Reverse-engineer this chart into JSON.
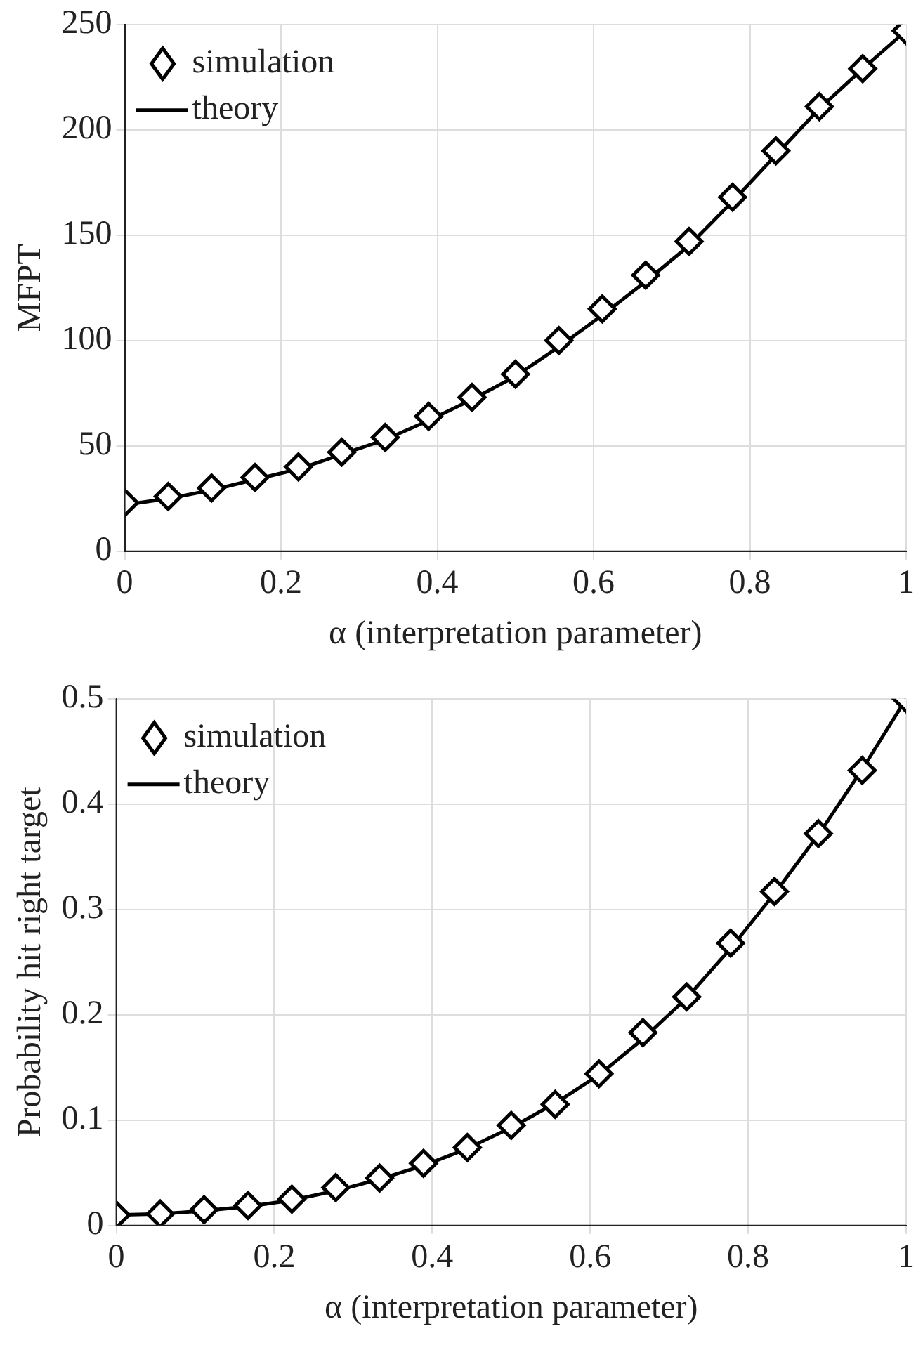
{
  "chart_data": [
    {
      "type": "line",
      "xlabel": "α (interpretation parameter)",
      "ylabel": "MFPT",
      "x": [
        0,
        0.0556,
        0.1111,
        0.1667,
        0.2222,
        0.2778,
        0.3333,
        0.3889,
        0.4444,
        0.5,
        0.5556,
        0.6111,
        0.6667,
        0.7222,
        0.7778,
        0.8333,
        0.8889,
        0.9444,
        1
      ],
      "series": [
        {
          "name": "simulation",
          "type": "scatter",
          "marker": "diamond",
          "color": "#000000",
          "values": [
            23,
            26,
            30,
            35,
            40,
            47,
            54,
            64,
            73,
            84,
            100,
            115,
            131,
            147,
            168,
            190,
            211,
            229,
            247
          ]
        },
        {
          "name": "theory",
          "type": "line",
          "marker": "none",
          "line_style": "solid",
          "color": "#000000",
          "values": [
            22,
            25,
            29,
            34,
            39,
            46,
            53,
            62,
            72,
            83,
            97,
            112,
            128,
            145,
            166,
            188,
            210,
            229,
            247
          ]
        }
      ],
      "xlim": [
        0,
        1
      ],
      "xticks": [
        0,
        0.2,
        0.4,
        0.6,
        0.8,
        1
      ],
      "ylim": [
        0,
        250
      ],
      "yticks": [
        0,
        50,
        100,
        150,
        200,
        250
      ],
      "grid": true,
      "legend": "top left"
    },
    {
      "type": "line",
      "xlabel": "α (interpretation parameter)",
      "ylabel": "Probability hit right target",
      "x": [
        0,
        0.0556,
        0.1111,
        0.1667,
        0.2222,
        0.2778,
        0.3333,
        0.3889,
        0.4444,
        0.5,
        0.5556,
        0.6111,
        0.6667,
        0.7222,
        0.7778,
        0.8333,
        0.8889,
        0.9444,
        1
      ],
      "series": [
        {
          "name": "simulation",
          "type": "scatter",
          "marker": "diamond",
          "color": "#000000",
          "values": [
            0.01,
            0.011,
            0.015,
            0.019,
            0.025,
            0.036,
            0.045,
            0.059,
            0.074,
            0.095,
            0.115,
            0.144,
            0.183,
            0.217,
            0.268,
            0.317,
            0.372,
            0.432,
            0.5
          ]
        },
        {
          "name": "theory",
          "type": "line",
          "marker": "none",
          "line_style": "solid",
          "color": "#000000",
          "values": [
            0.01,
            0.011,
            0.014,
            0.018,
            0.024,
            0.033,
            0.044,
            0.057,
            0.073,
            0.093,
            0.116,
            0.143,
            0.177,
            0.216,
            0.263,
            0.315,
            0.371,
            0.433,
            0.5
          ]
        }
      ],
      "xlim": [
        0,
        1
      ],
      "xticks": [
        0,
        0.2,
        0.4,
        0.6,
        0.8,
        1
      ],
      "ylim": [
        0,
        0.5
      ],
      "yticks": [
        0,
        0.1,
        0.2,
        0.3,
        0.4,
        0.5
      ],
      "grid": true,
      "legend": "top left"
    }
  ]
}
